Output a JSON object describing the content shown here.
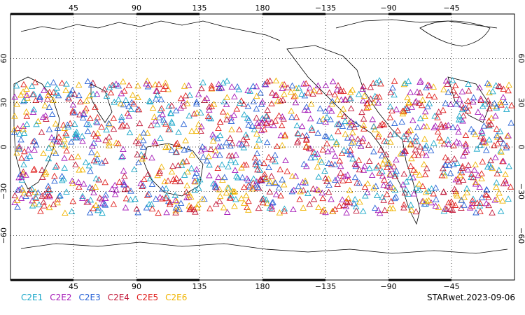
{
  "map": {
    "projection": "equirectangular",
    "center_longitude": 180,
    "lon_range": [
      0,
      360
    ],
    "lat_range": [
      -90,
      90
    ],
    "grid": "dotted, every 45° longitude and 30° latitude"
  },
  "axes": {
    "top_lon_labels": [
      "45",
      "90",
      "135",
      "180",
      "−135",
      "−90",
      "−45"
    ],
    "bottom_lon_labels": [
      "45",
      "90",
      "135",
      "180",
      "−135",
      "−90",
      "−45"
    ],
    "lat_labels": [
      "60",
      "30",
      "0",
      "−30",
      "−60"
    ]
  },
  "legend": [
    {
      "label": "C2E1",
      "color": "#1aa7c9"
    },
    {
      "label": "C2E2",
      "color": "#a51ab8"
    },
    {
      "label": "C2E3",
      "color": "#2a63d6"
    },
    {
      "label": "C2E4",
      "color": "#c21a3a"
    },
    {
      "label": "C2E5",
      "color": "#e0201e"
    },
    {
      "label": "C2E6",
      "color": "#f0b400"
    }
  ],
  "footer": {
    "date_label": "STARwet.2023-09-06"
  },
  "observations": {
    "marker": "triangle",
    "lat_extent": [
      -45,
      45
    ]
  }
}
